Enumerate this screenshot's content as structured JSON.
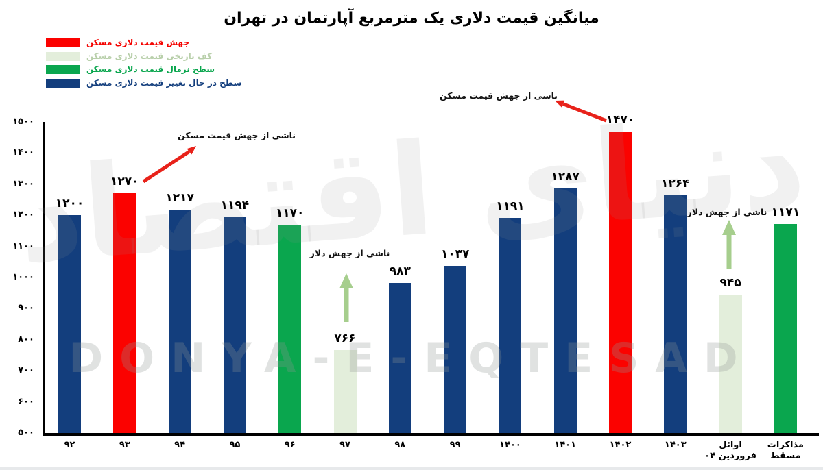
{
  "title": "میانگین قیمت دلاری یک مترمربع آپارتمان در تهران",
  "watermark": {
    "persian": "دنیای اقتصاد",
    "latin": "DONYA-E-EQTESAD"
  },
  "legend": [
    {
      "label": "جهش قیمت دلاری مسکن",
      "color": "#fb0200",
      "text_color": "#f40300"
    },
    {
      "label": "کف تاریخی قیمت دلاری مسکن",
      "color": "#e3eedb",
      "text_color": "#b8cfaa"
    },
    {
      "label": "سطح نرمال قیمت دلاری مسکن",
      "color": "#0aa64e",
      "text_color": "#0aa64e"
    },
    {
      "label": "سطح در حال تغییر قیمت دلاری مسکن",
      "color": "#133e7d",
      "text_color": "#133e7d"
    }
  ],
  "chart_data": {
    "type": "bar",
    "title": "میانگین قیمت دلاری یک مترمربع آپارتمان در تهران",
    "xlabel": "",
    "ylabel": "",
    "ylim": [
      500,
      1500
    ],
    "ytick_step": 100,
    "grid": false,
    "legend_position": "top-left",
    "categories": [
      "۹۲",
      "۹۳",
      "۹۴",
      "۹۵",
      "۹۶",
      "۹۷",
      "۹۸",
      "۹۹",
      "۱۴۰۰",
      "۱۴۰۱",
      "۱۴۰۲",
      "۱۴۰۳",
      "اوائل\nفروردین ۰۴",
      "مذاکرات\nمسقط"
    ],
    "values": [
      1200,
      1270,
      1217,
      1194,
      1170,
      766,
      983,
      1037,
      1191,
      1287,
      1470,
      1264,
      945,
      1171
    ],
    "value_labels": [
      "۱۲۰۰",
      "۱۲۷۰",
      "۱۲۱۷",
      "۱۱۹۴",
      "۱۱۷۰",
      "۷۶۶",
      "۹۸۳",
      "۱۰۳۷",
      "۱۱۹۱",
      "۱۲۸۷",
      "۱۴۷۰",
      "۱۲۶۴",
      "۹۴۵",
      "۱۱۷۱"
    ],
    "series_color_keys": [
      "blue",
      "red",
      "blue",
      "blue",
      "green",
      "pale",
      "blue",
      "blue",
      "blue",
      "blue",
      "red",
      "blue",
      "pale",
      "green"
    ],
    "colors": {
      "red": "#fb0200",
      "blue": "#133e7d",
      "green": "#0aa64e",
      "pale": "#e3eedb"
    },
    "ytick_labels": [
      "۵۰۰",
      "۶۰۰",
      "۷۰۰",
      "۸۰۰",
      "۹۰۰",
      "۱۰۰۰",
      "۱۱۰۰",
      "۱۲۰۰",
      "۱۳۰۰",
      "۱۴۰۰",
      "۱۵۰۰"
    ],
    "annotations": [
      {
        "text": "ناشی از جهش قیمت مسکن",
        "target": "۹۳",
        "arrow": "red",
        "arrow_color": "#e8221a"
      },
      {
        "text": "ناشی از جهش دلار",
        "target": "۹۷",
        "arrow": "green",
        "arrow_color": "#a6ce8d"
      },
      {
        "text": "ناشی از جهش قیمت مسکن",
        "target": "۱۴۰۲",
        "arrow": "red",
        "arrow_color": "#e8221a"
      },
      {
        "text": "ناشی از جهش دلار",
        "target": "اوائل فروردین ۰۴",
        "arrow": "green",
        "arrow_color": "#a6ce8d"
      }
    ]
  }
}
